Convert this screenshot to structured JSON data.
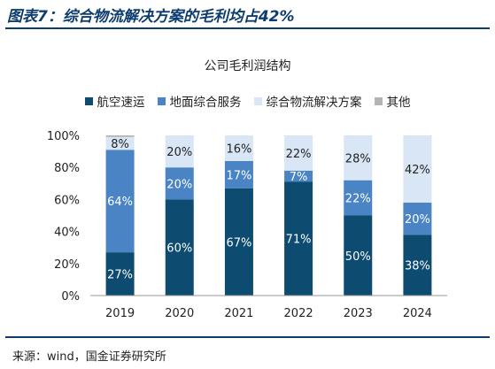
{
  "figure_title": "图表7：综合物流解决方案的毛利均占42%",
  "source": "来源：wind，国金证券研究所",
  "colors": {
    "accent": "#0d3c6e",
    "aviation": "#0d4b70",
    "ground": "#4a84c4",
    "logistics": "#d9e6f5",
    "other": "#b4b4b4"
  },
  "chart_data": {
    "type": "bar",
    "stacked": true,
    "title": "公司毛利润结构",
    "categories": [
      "2019",
      "2020",
      "2021",
      "2022",
      "2023",
      "2024"
    ],
    "series": [
      {
        "name": "航空速运",
        "values": [
          27,
          60,
          67,
          71,
          50,
          38
        ],
        "labels": [
          "27%",
          "60%",
          "67%",
          "71%",
          "50%",
          "38%"
        ]
      },
      {
        "name": "地面综合服务",
        "values": [
          64,
          20,
          17,
          7,
          22,
          20
        ],
        "labels": [
          "64%",
          "20%",
          "17%",
          "7%",
          "22%",
          "20%"
        ]
      },
      {
        "name": "综合物流解决方案",
        "values": [
          8,
          20,
          16,
          22,
          28,
          42
        ],
        "labels": [
          "8%",
          "20%",
          "16%",
          "22%",
          "28%",
          "42%"
        ]
      },
      {
        "name": "其他",
        "values": [
          1,
          0,
          0,
          0,
          0,
          0
        ],
        "labels": [
          "",
          "",
          "",
          "",
          "",
          ""
        ]
      }
    ],
    "yticks": [
      "0%",
      "20%",
      "40%",
      "60%",
      "80%",
      "100%"
    ],
    "ylim": [
      0,
      100
    ],
    "legend_position": "top",
    "grid": false
  }
}
